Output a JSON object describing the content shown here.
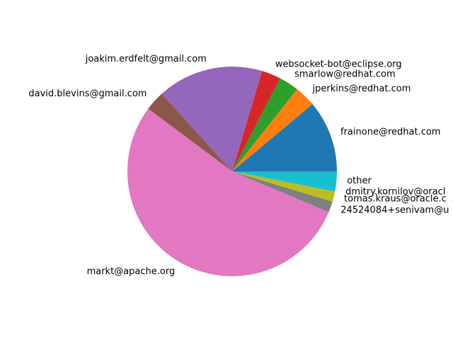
{
  "chart_data": {
    "type": "pie",
    "title": "",
    "start_angle_deg": 0,
    "direction": "counterclockwise",
    "legend": "none",
    "categories": [
      "frainone@redhat.com",
      "jperkins@redhat.com",
      "smarlow@redhat.com",
      "websocket-bot@eclipse.org",
      "joakim.erdfelt@gmail.com",
      "david.blevins@gmail.com",
      "markt@apache.org",
      "24524084+senivam@u",
      "tomas.kraus@oracle.c",
      "dmitry.kornilov@oracl",
      "other"
    ],
    "values": [
      11.2,
      3.3,
      3.1,
      3.0,
      16.5,
      3.1,
      54.4,
      1.7,
      1.6,
      0.4,
      2.7
    ],
    "colors": [
      "#1f77b4",
      "#ff7f0e",
      "#2ca02c",
      "#d62728",
      "#9467bd",
      "#8c564b",
      "#e377c2",
      "#7f7f7f",
      "#bcbd22",
      "#17becf",
      "#17becf"
    ]
  }
}
